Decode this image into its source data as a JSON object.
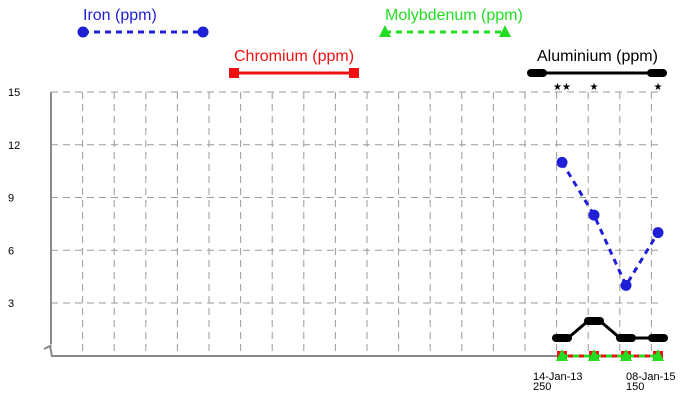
{
  "chart_data": {
    "type": "line",
    "title": "",
    "xlabel": "",
    "ylabel": "",
    "ylim": [
      0,
      15
    ],
    "yticks": [
      3,
      6,
      9,
      12,
      15
    ],
    "y_axis_break": true,
    "grid": true,
    "legend_placement": "top",
    "x_labels": [
      {
        "date": "14-Jan-13",
        "sub": "250"
      },
      {
        "date": "08-Jan-15",
        "sub": "150"
      }
    ],
    "x": [
      0,
      1,
      2,
      3
    ],
    "series": [
      {
        "name": "Iron (ppm)",
        "color": "#1f1fd6",
        "style": "dashed",
        "marker": "circle",
        "values": [
          11,
          8,
          4,
          7
        ]
      },
      {
        "name": "Chromium (ppm)",
        "color": "#ee1111",
        "style": "solid",
        "marker": "square",
        "values": [
          0,
          0,
          0,
          0
        ]
      },
      {
        "name": "Molybdenum (ppm)",
        "color": "#22dd22",
        "style": "dashed",
        "marker": "triangle",
        "values": [
          0,
          0,
          0,
          0
        ]
      },
      {
        "name": "Aluminium (ppm)",
        "color": "#000000",
        "style": "solid",
        "marker": "pill",
        "values": [
          1,
          2,
          1,
          1
        ]
      }
    ],
    "annotations": [
      {
        "x": 0,
        "text": "★★"
      },
      {
        "x": 1,
        "text": "★"
      },
      {
        "x": 3,
        "text": "★"
      }
    ]
  }
}
